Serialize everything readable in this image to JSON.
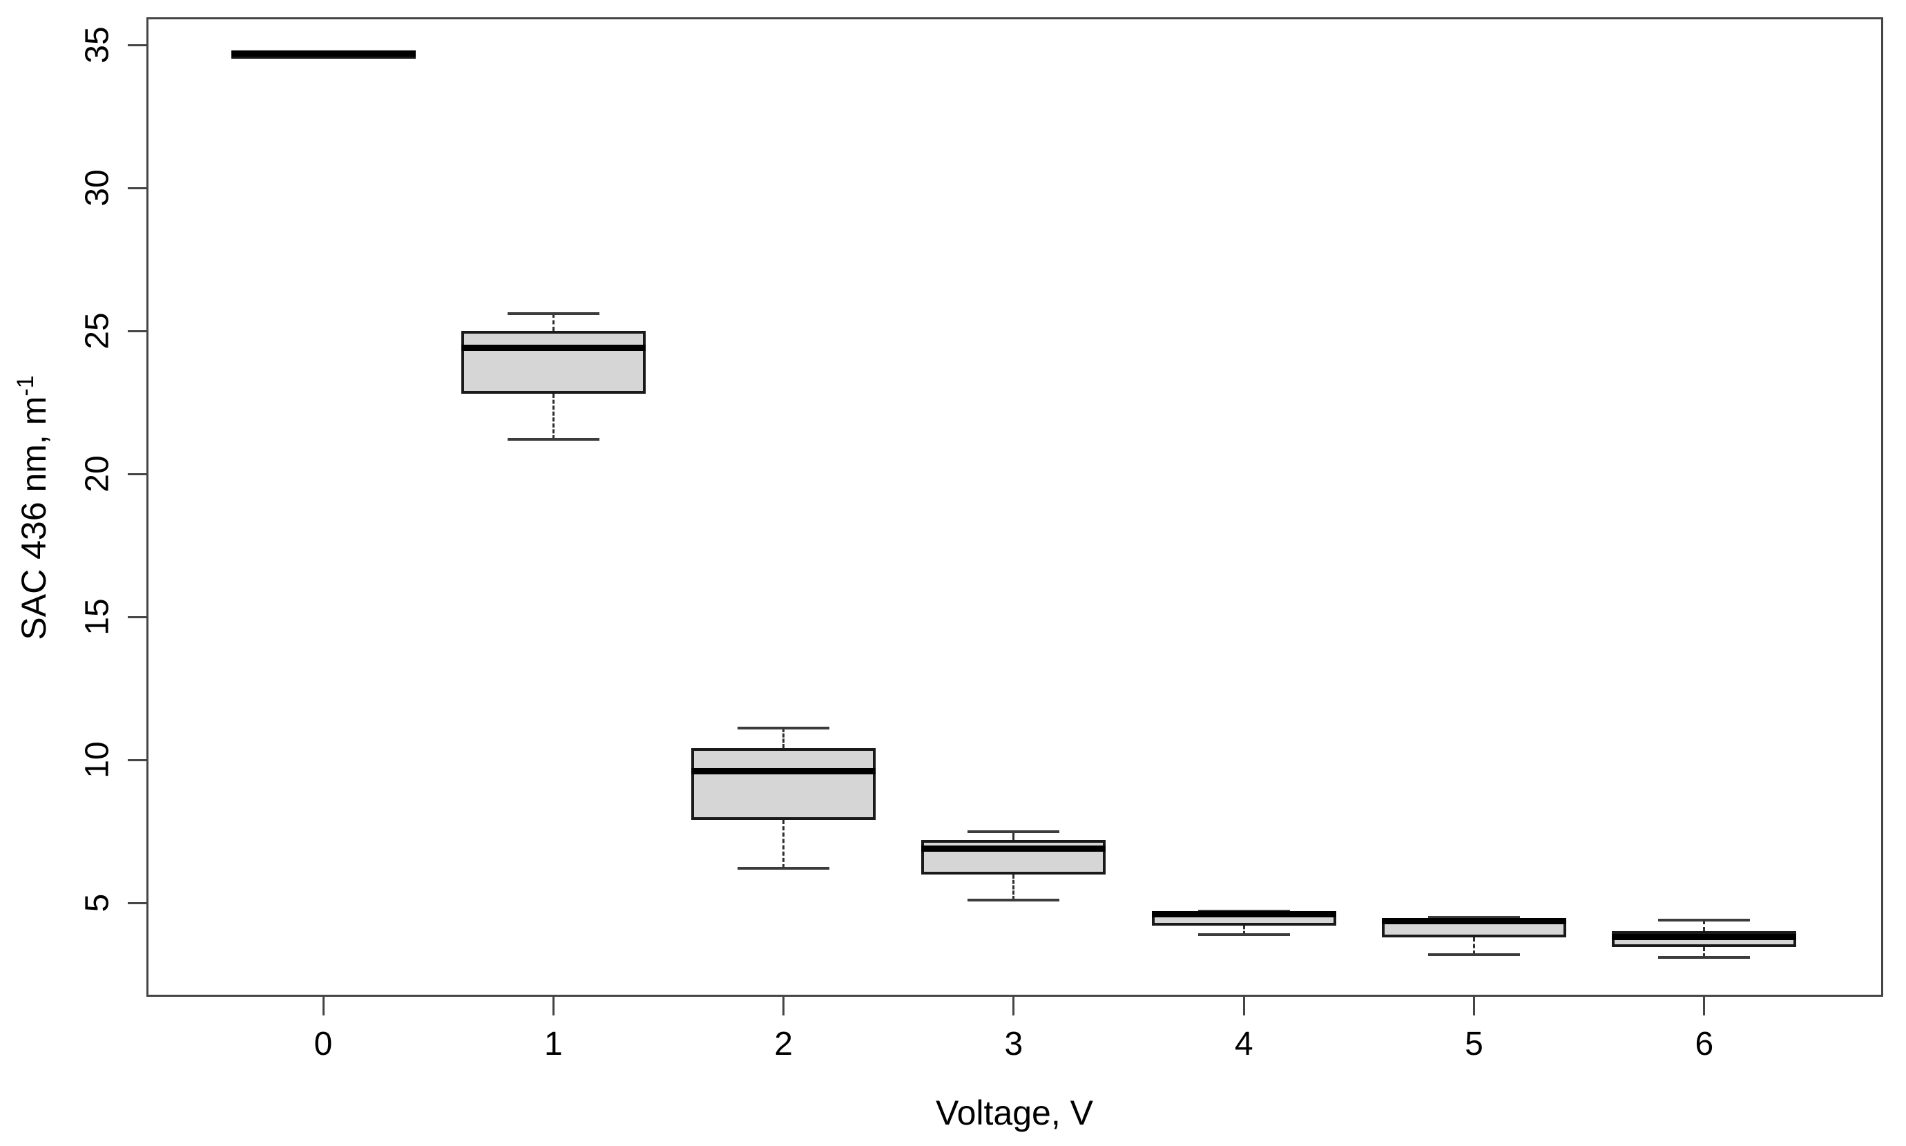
{
  "figure": {
    "background": "#ffffff",
    "title": ""
  },
  "chart_data": {
    "type": "boxplot",
    "title": "",
    "xlabel": "Voltage, V",
    "ylabel": "SAC 436 nm, m^-1",
    "ylabel_text": "SAC 436 nm, m",
    "ylabel_superscript": "-1",
    "categories": [
      "0",
      "1",
      "2",
      "3",
      "4",
      "5",
      "6"
    ],
    "y_ticks": [
      5,
      10,
      15,
      20,
      25,
      30,
      35
    ],
    "y_tick_labels": [
      "5",
      "10",
      "15",
      "20",
      "25",
      "30",
      "35"
    ],
    "ylim": [
      1.7,
      36.0
    ],
    "grid": false,
    "legend": false,
    "orientation": "vertical",
    "boxes": [
      {
        "category": "0",
        "whisker_low": 34.7,
        "q1": 34.7,
        "median": 34.7,
        "q3": 34.7,
        "whisker_high": 34.7
      },
      {
        "category": "1",
        "whisker_low": 21.2,
        "q1": 22.8,
        "median": 24.4,
        "q3": 25.0,
        "whisker_high": 25.6
      },
      {
        "category": "2",
        "whisker_low": 6.2,
        "q1": 7.9,
        "median": 9.6,
        "q3": 10.4,
        "whisker_high": 11.1
      },
      {
        "category": "3",
        "whisker_low": 5.1,
        "q1": 6.0,
        "median": 6.9,
        "q3": 7.2,
        "whisker_high": 7.5
      },
      {
        "category": "4",
        "whisker_low": 3.9,
        "q1": 4.2,
        "median": 4.6,
        "q3": 4.65,
        "whisker_high": 4.7
      },
      {
        "category": "5",
        "whisker_low": 3.2,
        "q1": 3.8,
        "median": 4.35,
        "q3": 4.45,
        "whisker_high": 4.5
      },
      {
        "category": "6",
        "whisker_low": 3.1,
        "q1": 3.45,
        "median": 3.8,
        "q3": 4.0,
        "whisker_high": 4.4
      }
    ],
    "colors": {
      "box_fill": "#d6d6d6",
      "box_border": "#1a1a1a",
      "median": "#000000",
      "whisker": "#2f2f2f",
      "whisker_cap": "#3c3c3c",
      "axis": "#454545",
      "text": "#000000",
      "background": "#ffffff"
    }
  }
}
